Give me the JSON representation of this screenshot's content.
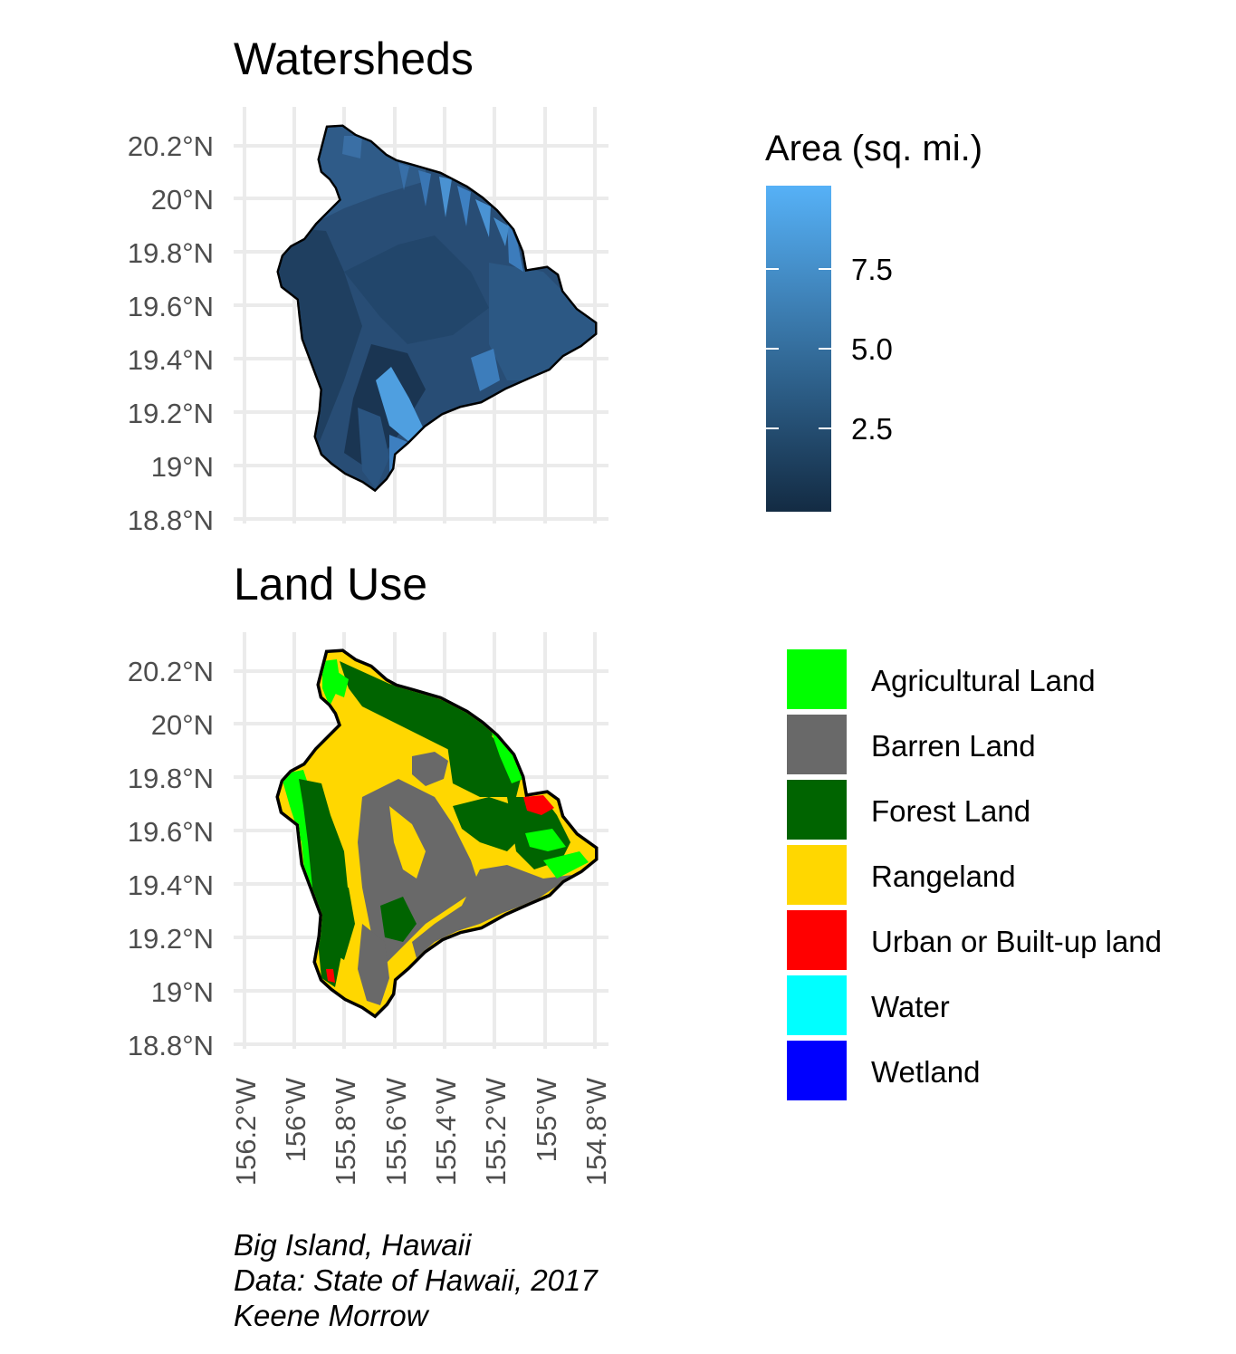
{
  "caption": {
    "line1": "Big Island, Hawaii",
    "line2": "Data: State of Hawaii, 2017",
    "line3": "Keene Morrow"
  },
  "colors": {
    "grid": "#ebebeb",
    "tick_text": "#4d4d4d",
    "outline": "#000000",
    "gradient_low": "#132B43",
    "gradient_high": "#56B1F7"
  },
  "chart_data": [
    {
      "type": "choropleth",
      "title": "Watersheds",
      "xlabel": "",
      "ylabel": "",
      "x_ticks": [
        "156.2°W",
        "156°W",
        "155.8°W",
        "155.6°W",
        "155.4°W",
        "155.2°W",
        "155°W",
        "154.8°W"
      ],
      "y_ticks": [
        "20.2°N",
        "20°N",
        "19.8°N",
        "19.6°N",
        "19.4°N",
        "19.2°N",
        "19°N",
        "18.8°N"
      ],
      "xlim": [
        -156.2,
        -154.8
      ],
      "ylim": [
        18.8,
        20.3
      ],
      "grid": true,
      "legend": {
        "title": "Area (sq. mi.)",
        "type": "continuous",
        "placement": "right",
        "breaks": [
          "7.5",
          "5.0",
          "2.5"
        ],
        "range": [
          0,
          10
        ],
        "low_color": "#132B43",
        "high_color": "#56B1F7"
      }
    },
    {
      "type": "choropleth",
      "title": "Land Use",
      "xlabel": "",
      "ylabel": "",
      "x_ticks": [
        "156.2°W",
        "156°W",
        "155.8°W",
        "155.6°W",
        "155.4°W",
        "155.2°W",
        "155°W",
        "154.8°W"
      ],
      "y_ticks": [
        "20.2°N",
        "20°N",
        "19.8°N",
        "19.6°N",
        "19.4°N",
        "19.2°N",
        "19°N",
        "18.8°N"
      ],
      "xlim": [
        -156.2,
        -154.8
      ],
      "ylim": [
        18.8,
        20.3
      ],
      "grid": true,
      "legend": {
        "type": "categorical",
        "placement": "right",
        "items": [
          {
            "label": "Agricultural Land",
            "color": "#00ff00"
          },
          {
            "label": "Barren Land",
            "color": "#696969"
          },
          {
            "label": "Forest Land",
            "color": "#006400"
          },
          {
            "label": "Rangeland",
            "color": "#ffd700"
          },
          {
            "label": "Urban or Built-up land",
            "color": "#ff0000"
          },
          {
            "label": "Water",
            "color": "#00ffff"
          },
          {
            "label": "Wetland",
            "color": "#0000ff"
          }
        ]
      }
    }
  ]
}
